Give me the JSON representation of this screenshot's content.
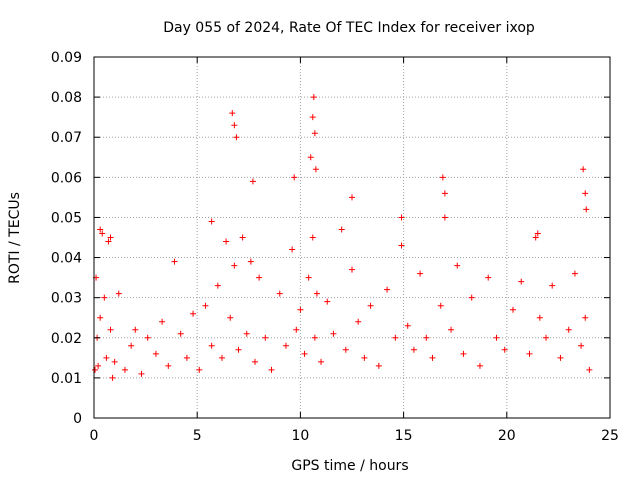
{
  "chart_data": {
    "type": "scatter",
    "title": "Day 055 of 2024, Rate Of TEC Index for receiver ixop",
    "xlabel": "GPS time / hours",
    "ylabel": "ROTI / TECUs",
    "xlim": [
      0,
      25
    ],
    "ylim": [
      0,
      0.09
    ],
    "x_ticks": [
      0,
      5,
      10,
      15,
      20,
      25
    ],
    "x_tick_labels": [
      "0",
      "5",
      "10",
      "15",
      "20",
      "25"
    ],
    "y_ticks": [
      0,
      0.01,
      0.02,
      0.03,
      0.04,
      0.05,
      0.06,
      0.07,
      0.08,
      0.09
    ],
    "y_tick_labels": [
      "0",
      "0.01",
      "0.02",
      "0.03",
      "0.04",
      "0.05",
      "0.06",
      "0.07",
      "0.08",
      "0.09"
    ],
    "grid": true,
    "marker": "+",
    "series": [
      {
        "name": "ROTI",
        "color": "#ff0000",
        "x": [
          0.05,
          0.1,
          0.15,
          0.2,
          0.3,
          0.4,
          0.5,
          0.6,
          0.7,
          0.8,
          0.9,
          1.0,
          1.2,
          1.5,
          1.8,
          2.0,
          2.3,
          2.6,
          3.0,
          3.3,
          3.6,
          3.9,
          4.2,
          4.5,
          4.8,
          5.1,
          5.4,
          5.7,
          6.0,
          6.2,
          6.4,
          6.6,
          6.8,
          7.0,
          7.2,
          7.4,
          7.6,
          7.8,
          8.0,
          8.3,
          8.6,
          9.0,
          9.3,
          9.6,
          9.8,
          10.0,
          10.2,
          10.4,
          10.6,
          10.7,
          10.8,
          11.0,
          11.3,
          11.6,
          12.0,
          12.2,
          12.5,
          12.8,
          13.1,
          13.4,
          13.8,
          14.2,
          14.6,
          14.9,
          15.2,
          15.5,
          15.8,
          16.1,
          16.4,
          16.8,
          17.0,
          17.3,
          17.6,
          17.9,
          18.3,
          18.7,
          19.1,
          19.5,
          19.9,
          20.3,
          20.7,
          21.1,
          21.4,
          21.6,
          21.9,
          22.2,
          22.6,
          23.0,
          23.3,
          23.6,
          23.8,
          24.0,
          0.3,
          0.8,
          5.7,
          6.7,
          6.8,
          6.9,
          7.7,
          9.7,
          10.5,
          10.6,
          10.65,
          10.7,
          10.75,
          12.5,
          14.9,
          16.9,
          17.0,
          21.5,
          23.7,
          23.8,
          23.85
        ],
        "y": [
          0.012,
          0.035,
          0.02,
          0.013,
          0.025,
          0.046,
          0.03,
          0.015,
          0.044,
          0.022,
          0.01,
          0.014,
          0.031,
          0.012,
          0.018,
          0.022,
          0.011,
          0.02,
          0.016,
          0.024,
          0.013,
          0.039,
          0.021,
          0.015,
          0.026,
          0.012,
          0.028,
          0.018,
          0.033,
          0.015,
          0.044,
          0.025,
          0.038,
          0.017,
          0.045,
          0.021,
          0.039,
          0.014,
          0.035,
          0.02,
          0.012,
          0.031,
          0.018,
          0.042,
          0.022,
          0.027,
          0.016,
          0.035,
          0.045,
          0.02,
          0.031,
          0.014,
          0.029,
          0.021,
          0.047,
          0.017,
          0.037,
          0.024,
          0.015,
          0.028,
          0.013,
          0.032,
          0.02,
          0.043,
          0.023,
          0.017,
          0.036,
          0.02,
          0.015,
          0.028,
          0.05,
          0.022,
          0.038,
          0.016,
          0.03,
          0.013,
          0.035,
          0.02,
          0.017,
          0.027,
          0.034,
          0.016,
          0.045,
          0.025,
          0.02,
          0.033,
          0.015,
          0.022,
          0.036,
          0.018,
          0.025,
          0.012,
          0.047,
          0.045,
          0.049,
          0.076,
          0.073,
          0.07,
          0.059,
          0.06,
          0.065,
          0.075,
          0.08,
          0.071,
          0.062,
          0.055,
          0.05,
          0.06,
          0.056,
          0.046,
          0.062,
          0.056,
          0.052
        ]
      }
    ]
  }
}
